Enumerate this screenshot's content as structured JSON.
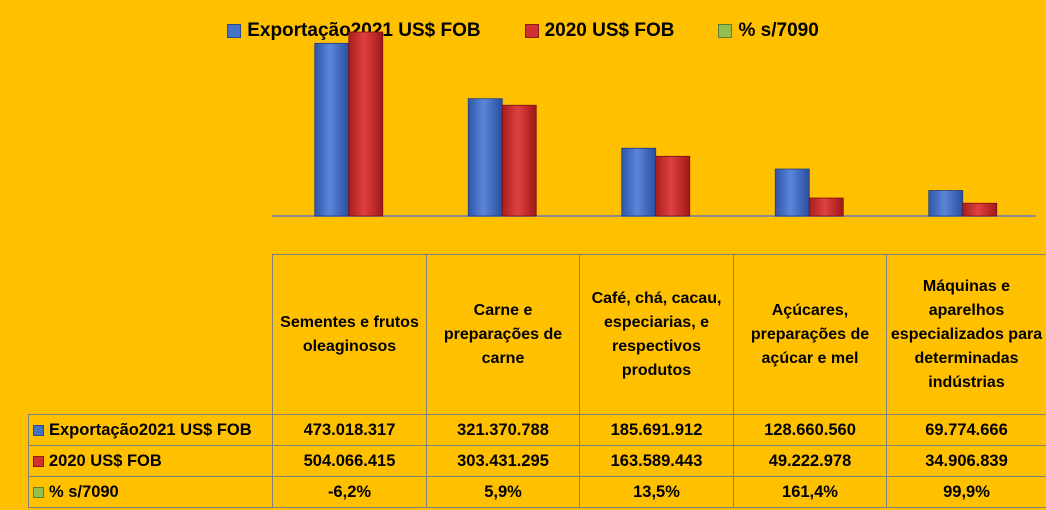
{
  "chart_data": {
    "type": "bar",
    "categories": [
      "Sementes e frutos oleaginosos",
      "Carne e preparações de carne",
      "Café, chá, cacau, especiarias, e respectivos produtos",
      "Açúcares, preparações de açúcar e mel",
      "Máquinas e aparelhos especializados para determinadas indústrias"
    ],
    "series": [
      {
        "name": "Exportação2021 US$ FOB",
        "color": "#4472C4",
        "values": [
          473018317,
          321370788,
          185691912,
          128660560,
          69774666
        ],
        "display": [
          "473.018.317",
          "321.370.788",
          "185.691.912",
          "128.660.560",
          "69.774.666"
        ]
      },
      {
        "name": "2020 US$ FOB",
        "color": "#D03030",
        "values": [
          504066415,
          303431295,
          163589443,
          49222978,
          34906839
        ],
        "display": [
          "504.066.415",
          "303.431.295",
          "163.589.443",
          "49.222.978",
          "34.906.839"
        ]
      },
      {
        "name": "% s/7090",
        "color": "#92C050",
        "values": [
          -6.2,
          5.9,
          13.5,
          161.4,
          99.9
        ],
        "display": [
          "-6,2%",
          "5,9%",
          "13,5%",
          "161,4%",
          "99,9%"
        ]
      }
    ],
    "legend_position": "top",
    "grid": false
  }
}
